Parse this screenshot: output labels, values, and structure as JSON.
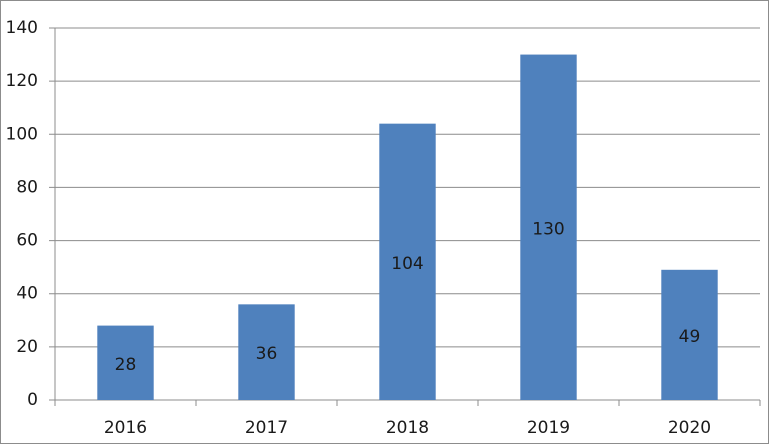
{
  "chart_data": {
    "type": "bar",
    "categories": [
      "2016",
      "2017",
      "2018",
      "2019",
      "2020"
    ],
    "values": [
      28,
      36,
      104,
      130,
      49
    ],
    "color": "#4f81bd",
    "ylim": [
      0,
      140
    ],
    "yticks": [
      0,
      20,
      40,
      60,
      80,
      100,
      120,
      140
    ],
    "grid": true
  }
}
